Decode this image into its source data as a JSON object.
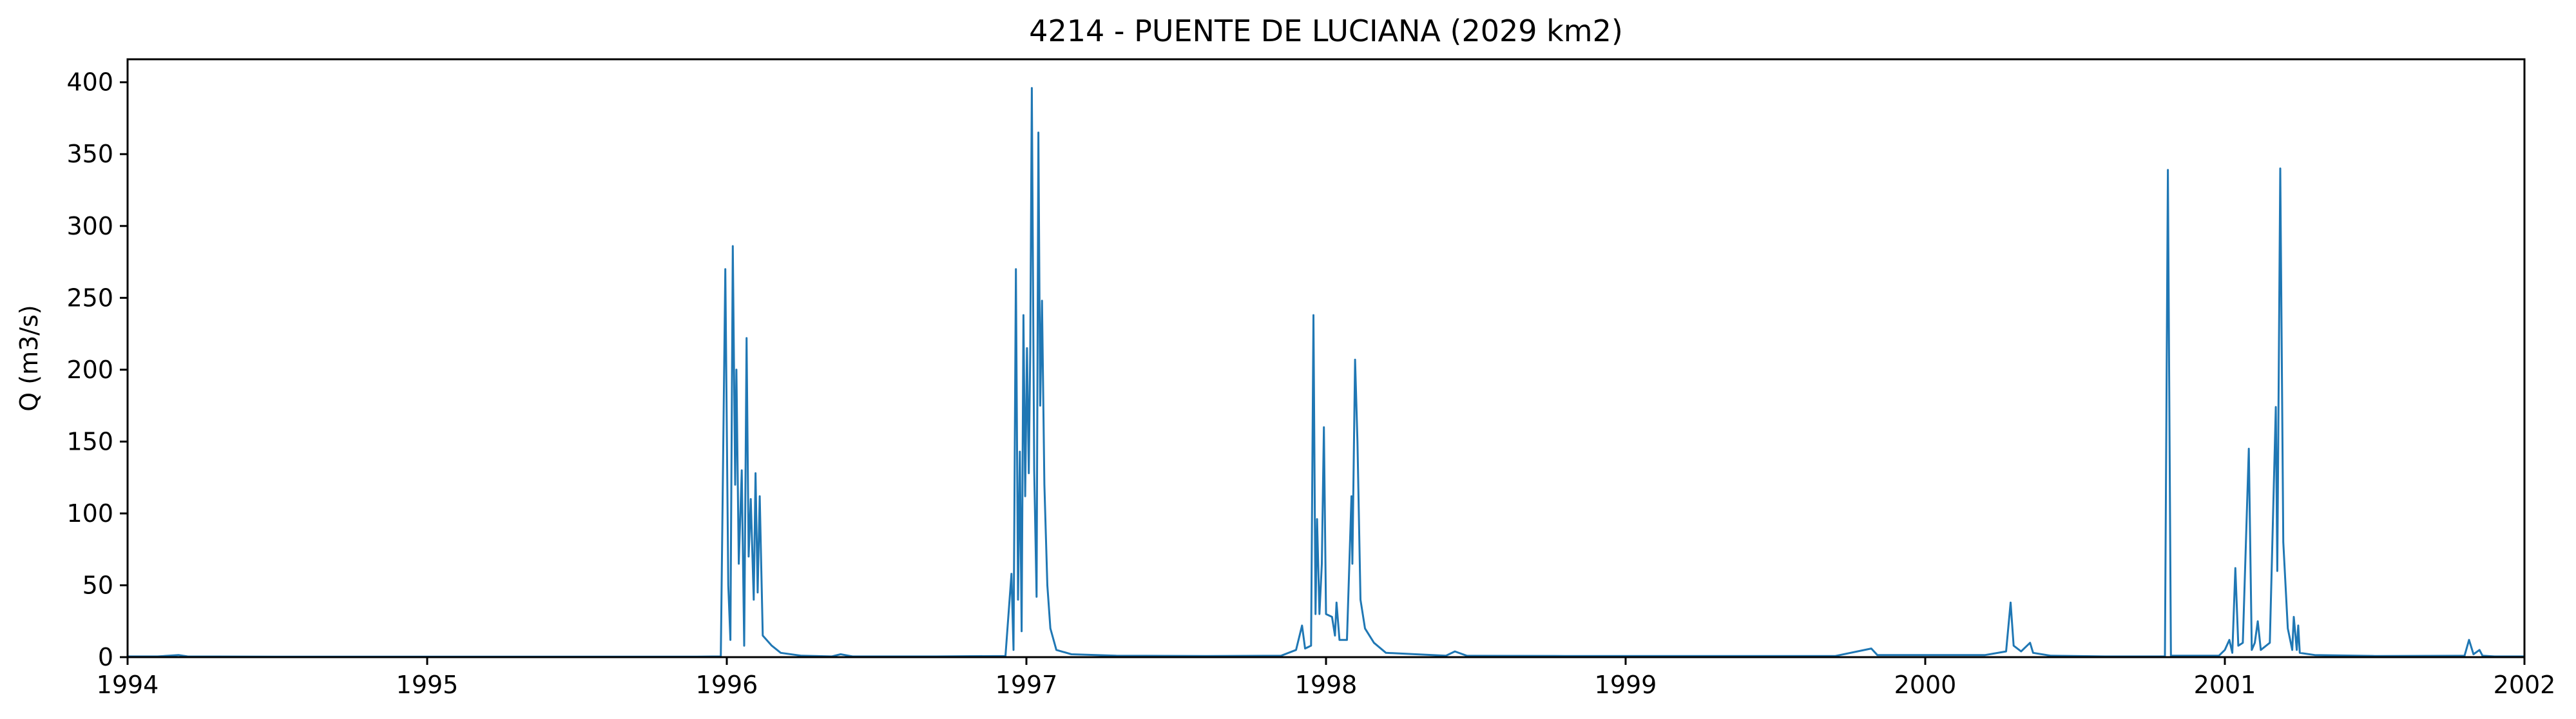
{
  "chart_data": {
    "type": "line",
    "title": "4214 - PUENTE DE LUCIANA (2029 km2)",
    "xlabel": "",
    "ylabel": "Q (m3/s)",
    "xlim": [
      1994,
      2002
    ],
    "ylim": [
      0,
      416
    ],
    "xticks": [
      "1994",
      "1995",
      "1996",
      "1997",
      "1998",
      "1999",
      "2000",
      "2001",
      "2002"
    ],
    "yticks": [
      "0",
      "50",
      "100",
      "150",
      "200",
      "250",
      "300",
      "350",
      "400"
    ],
    "grid": false,
    "color": "#1f77b4",
    "series": [
      {
        "name": "",
        "points": [
          [
            1994.0,
            0.5
          ],
          [
            1994.1,
            0.5
          ],
          [
            1994.17,
            1.5
          ],
          [
            1994.2,
            0.5
          ],
          [
            1994.5,
            0.3
          ],
          [
            1995.0,
            0.3
          ],
          [
            1995.5,
            0.3
          ],
          [
            1995.9,
            0.3
          ],
          [
            1995.98,
            0.5
          ],
          [
            1995.995,
            270
          ],
          [
            1996.005,
            50
          ],
          [
            1996.012,
            12
          ],
          [
            1996.02,
            286
          ],
          [
            1996.028,
            120
          ],
          [
            1996.032,
            200
          ],
          [
            1996.04,
            65
          ],
          [
            1996.05,
            130
          ],
          [
            1996.058,
            8
          ],
          [
            1996.066,
            222
          ],
          [
            1996.073,
            70
          ],
          [
            1996.08,
            110
          ],
          [
            1996.09,
            40
          ],
          [
            1996.096,
            128
          ],
          [
            1996.103,
            45
          ],
          [
            1996.11,
            112
          ],
          [
            1996.12,
            15
          ],
          [
            1996.15,
            8
          ],
          [
            1996.18,
            3
          ],
          [
            1996.25,
            1
          ],
          [
            1996.35,
            0.5
          ],
          [
            1996.38,
            2
          ],
          [
            1996.42,
            0.5
          ],
          [
            1996.7,
            0.5
          ],
          [
            1996.93,
            0.8
          ],
          [
            1996.95,
            58
          ],
          [
            1996.957,
            5
          ],
          [
            1996.965,
            270
          ],
          [
            1996.972,
            40
          ],
          [
            1996.978,
            143
          ],
          [
            1996.984,
            18
          ],
          [
            1996.99,
            238
          ],
          [
            1996.996,
            112
          ],
          [
            1997.002,
            215
          ],
          [
            1997.008,
            128
          ],
          [
            1997.013,
            215
          ],
          [
            1997.018,
            396
          ],
          [
            1997.026,
            130
          ],
          [
            1997.034,
            42
          ],
          [
            1997.04,
            365
          ],
          [
            1997.046,
            175
          ],
          [
            1997.052,
            248
          ],
          [
            1997.06,
            120
          ],
          [
            1997.07,
            50
          ],
          [
            1997.08,
            20
          ],
          [
            1997.1,
            5
          ],
          [
            1997.15,
            2
          ],
          [
            1997.3,
            1
          ],
          [
            1997.6,
            0.8
          ],
          [
            1997.85,
            1
          ],
          [
            1997.9,
            5
          ],
          [
            1997.92,
            22
          ],
          [
            1997.93,
            6
          ],
          [
            1997.95,
            8
          ],
          [
            1997.958,
            238
          ],
          [
            1997.965,
            30
          ],
          [
            1997.97,
            96
          ],
          [
            1997.978,
            30
          ],
          [
            1997.986,
            65
          ],
          [
            1997.993,
            160
          ],
          [
            1998.0,
            30
          ],
          [
            1998.02,
            28
          ],
          [
            1998.03,
            15
          ],
          [
            1998.035,
            38
          ],
          [
            1998.045,
            12
          ],
          [
            1998.07,
            12
          ],
          [
            1998.085,
            112
          ],
          [
            1998.088,
            65
          ],
          [
            1998.097,
            207
          ],
          [
            1998.105,
            150
          ],
          [
            1998.115,
            40
          ],
          [
            1998.13,
            20
          ],
          [
            1998.16,
            10
          ],
          [
            1998.2,
            3
          ],
          [
            1998.3,
            2
          ],
          [
            1998.4,
            1
          ],
          [
            1998.43,
            4
          ],
          [
            1998.47,
            1
          ],
          [
            1998.8,
            0.8
          ],
          [
            1999.0,
            0.8
          ],
          [
            1999.4,
            0.8
          ],
          [
            1999.7,
            0.8
          ],
          [
            1999.82,
            6
          ],
          [
            1999.84,
            1.5
          ],
          [
            2000.0,
            1.5
          ],
          [
            2000.2,
            1.5
          ],
          [
            2000.27,
            4
          ],
          [
            2000.285,
            38
          ],
          [
            2000.295,
            8
          ],
          [
            2000.32,
            4
          ],
          [
            2000.35,
            10
          ],
          [
            2000.36,
            3
          ],
          [
            2000.42,
            1
          ],
          [
            2000.6,
            0.5
          ],
          [
            2000.8,
            0.5
          ],
          [
            2000.81,
            339
          ],
          [
            2000.82,
            1
          ],
          [
            2000.98,
            1
          ],
          [
            2001.0,
            5
          ],
          [
            2001.015,
            12
          ],
          [
            2001.025,
            3
          ],
          [
            2001.035,
            62
          ],
          [
            2001.045,
            8
          ],
          [
            2001.06,
            10
          ],
          [
            2001.08,
            145
          ],
          [
            2001.09,
            5
          ],
          [
            2001.1,
            10
          ],
          [
            2001.11,
            25
          ],
          [
            2001.12,
            5
          ],
          [
            2001.15,
            10
          ],
          [
            2001.17,
            174
          ],
          [
            2001.175,
            60
          ],
          [
            2001.185,
            340
          ],
          [
            2001.195,
            80
          ],
          [
            2001.21,
            20
          ],
          [
            2001.225,
            5
          ],
          [
            2001.23,
            28
          ],
          [
            2001.24,
            5
          ],
          [
            2001.245,
            22
          ],
          [
            2001.25,
            3
          ],
          [
            2001.3,
            1.5
          ],
          [
            2001.5,
            0.8
          ],
          [
            2001.8,
            1
          ],
          [
            2001.815,
            12
          ],
          [
            2001.83,
            2
          ],
          [
            2001.85,
            5
          ],
          [
            2001.86,
            1
          ],
          [
            2001.9,
            0.5
          ],
          [
            2002.0,
            0.5
          ]
        ]
      }
    ]
  }
}
